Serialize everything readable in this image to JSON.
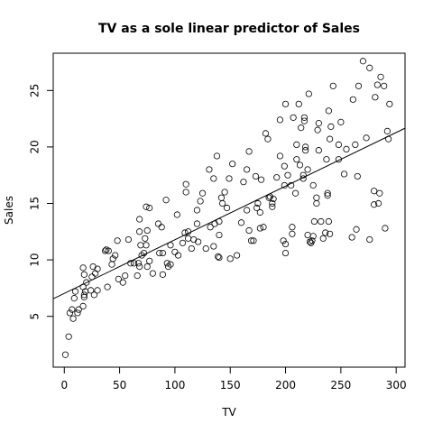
{
  "chart_data": {
    "type": "scatter",
    "title": "TV as a sole linear predictor of Sales",
    "xlabel": "TV",
    "ylabel": "Sales",
    "xlim": [
      -10,
      308
    ],
    "ylim": [
      0.5,
      28.3
    ],
    "xticks": [
      0,
      50,
      100,
      150,
      200,
      250,
      300
    ],
    "yticks": [
      5,
      10,
      15,
      20,
      25
    ],
    "grid": false,
    "regression_line": {
      "intercept": 7.03,
      "slope": 0.0475
    },
    "points": [
      [
        1,
        1.6
      ],
      [
        4,
        3.2
      ],
      [
        5,
        5.3
      ],
      [
        7,
        5.6
      ],
      [
        8,
        4.8
      ],
      [
        9,
        6.6
      ],
      [
        10,
        7.2
      ],
      [
        12,
        5.3
      ],
      [
        13,
        5.6
      ],
      [
        17,
        5.9
      ],
      [
        17,
        7.6
      ],
      [
        18,
        6.7
      ],
      [
        18,
        6.9
      ],
      [
        18,
        8.7
      ],
      [
        19,
        7.2
      ],
      [
        17,
        9.3
      ],
      [
        20,
        8.0
      ],
      [
        24,
        7.3
      ],
      [
        25,
        8.5
      ],
      [
        26,
        9.4
      ],
      [
        27,
        6.9
      ],
      [
        28,
        8.8
      ],
      [
        30,
        9.2
      ],
      [
        30,
        7.3
      ],
      [
        37,
        10.8
      ],
      [
        38,
        10.9
      ],
      [
        39,
        7.6
      ],
      [
        40,
        10.8
      ],
      [
        43,
        9.6
      ],
      [
        44,
        10.1
      ],
      [
        46,
        10.4
      ],
      [
        48,
        11.7
      ],
      [
        49,
        8.3
      ],
      [
        53,
        8.0
      ],
      [
        55,
        8.6
      ],
      [
        58,
        11.8
      ],
      [
        60,
        9.7
      ],
      [
        63,
        9.7
      ],
      [
        66,
        8.6
      ],
      [
        67,
        9.7
      ],
      [
        68,
        9.4
      ],
      [
        69,
        11.3
      ],
      [
        68,
        12.5
      ],
      [
        68,
        13.6
      ],
      [
        70,
        10.4
      ],
      [
        72,
        10.6
      ],
      [
        73,
        11.9
      ],
      [
        74,
        11.3
      ],
      [
        75,
        9.4
      ],
      [
        75,
        12.6
      ],
      [
        74,
        14.7
      ],
      [
        77,
        9.9
      ],
      [
        77,
        14.6
      ],
      [
        80,
        8.8
      ],
      [
        85,
        13.2
      ],
      [
        86,
        10.6
      ],
      [
        88,
        12.9
      ],
      [
        89,
        10.6
      ],
      [
        89,
        8.7
      ],
      [
        92,
        15.3
      ],
      [
        93,
        9.7
      ],
      [
        94,
        9.4
      ],
      [
        96,
        9.6
      ],
      [
        96,
        11.3
      ],
      [
        100,
        10.7
      ],
      [
        102,
        14.0
      ],
      [
        103,
        10.4
      ],
      [
        107,
        11.5
      ],
      [
        109,
        12.4
      ],
      [
        110,
        16.7
      ],
      [
        110,
        16.0
      ],
      [
        112,
        11.9
      ],
      [
        115,
        11.0
      ],
      [
        117,
        11.8
      ],
      [
        120,
        13.2
      ],
      [
        120,
        14.4
      ],
      [
        121,
        11.6
      ],
      [
        123,
        15.2
      ],
      [
        125,
        15.9
      ],
      [
        128,
        11.0
      ],
      [
        131,
        18.0
      ],
      [
        132,
        12.9
      ],
      [
        135,
        11.2
      ],
      [
        135,
        17.2
      ],
      [
        136,
        13.2
      ],
      [
        138,
        19.2
      ],
      [
        139,
        10.3
      ],
      [
        140,
        13.4
      ],
      [
        140,
        10.2
      ],
      [
        140,
        12.2
      ],
      [
        142,
        15.5
      ],
      [
        143,
        15.0
      ],
      [
        147,
        14.6
      ],
      [
        149,
        17.2
      ],
      [
        150,
        10.1
      ],
      [
        152,
        18.5
      ],
      [
        156,
        10.4
      ],
      [
        162,
        16.9
      ],
      [
        165,
        14.4
      ],
      [
        165,
        18.0
      ],
      [
        167,
        12.6
      ],
      [
        167,
        19.6
      ],
      [
        169,
        11.7
      ],
      [
        171,
        11.7
      ],
      [
        173,
        17.4
      ],
      [
        174,
        14.6
      ],
      [
        175,
        15.0
      ],
      [
        177,
        12.8
      ],
      [
        177,
        14.2
      ],
      [
        178,
        17.1
      ],
      [
        180,
        12.9
      ],
      [
        182,
        21.2
      ],
      [
        184,
        20.7
      ],
      [
        185,
        15.5
      ],
      [
        186,
        15.6
      ],
      [
        188,
        14.7
      ],
      [
        188,
        15.0
      ],
      [
        189,
        15.4
      ],
      [
        192,
        17.3
      ],
      [
        195,
        19.2
      ],
      [
        195,
        22.4
      ],
      [
        198,
        11.7
      ],
      [
        199,
        16.6
      ],
      [
        199,
        18.3
      ],
      [
        200,
        10.6
      ],
      [
        200,
        11.4
      ],
      [
        200,
        23.8
      ],
      [
        202,
        17.5
      ],
      [
        205,
        16.6
      ],
      [
        206,
        12.3
      ],
      [
        206,
        12.9
      ],
      [
        207,
        22.6
      ],
      [
        209,
        15.9
      ],
      [
        210,
        18.9
      ],
      [
        212,
        23.8
      ],
      [
        213,
        18.4
      ],
      [
        214,
        21.7
      ],
      [
        216,
        17.2
      ],
      [
        216,
        17.5
      ],
      [
        217,
        22.3
      ],
      [
        217,
        22.6
      ],
      [
        218,
        19.7
      ],
      [
        218,
        20.0
      ],
      [
        220,
        18.0
      ],
      [
        220,
        12.2
      ],
      [
        221,
        24.7
      ],
      [
        222,
        11.6
      ],
      [
        223,
        11.5
      ],
      [
        224,
        11.7
      ],
      [
        225,
        12.1
      ],
      [
        225,
        16.6
      ],
      [
        226,
        13.4
      ],
      [
        228,
        15.0
      ],
      [
        228,
        15.5
      ],
      [
        229,
        21.5
      ],
      [
        230,
        19.7
      ],
      [
        230,
        22.1
      ],
      [
        232,
        13.4
      ],
      [
        234,
        11.9
      ],
      [
        236,
        12.4
      ],
      [
        237,
        18.9
      ],
      [
        238,
        15.7
      ],
      [
        238,
        15.9
      ],
      [
        239,
        13.4
      ],
      [
        239,
        23.2
      ],
      [
        240,
        12.3
      ],
      [
        240,
        20.7
      ],
      [
        241,
        21.8
      ],
      [
        243,
        25.4
      ],
      [
        248,
        20.2
      ],
      [
        248,
        18.9
      ],
      [
        250,
        22.2
      ],
      [
        253,
        17.6
      ],
      [
        255,
        19.8
      ],
      [
        260,
        12.0
      ],
      [
        261,
        24.2
      ],
      [
        263,
        20.2
      ],
      [
        264,
        12.7
      ],
      [
        265,
        17.4
      ],
      [
        266,
        25.4
      ],
      [
        273,
        20.8
      ],
      [
        276,
        11.8
      ],
      [
        276,
        27.0
      ],
      [
        280,
        14.9
      ],
      [
        280,
        16.1
      ],
      [
        281,
        24.4
      ],
      [
        283,
        25.5
      ],
      [
        284,
        15.0
      ],
      [
        285,
        15.9
      ],
      [
        286,
        26.2
      ],
      [
        289,
        25.4
      ],
      [
        290,
        12.8
      ],
      [
        292,
        21.4
      ],
      [
        293,
        20.7
      ],
      [
        294,
        23.8
      ],
      [
        270,
        27.6
      ],
      [
        145,
        16.0
      ],
      [
        112,
        12.5
      ],
      [
        210,
        20.2
      ],
      [
        160,
        13.3
      ]
    ]
  }
}
